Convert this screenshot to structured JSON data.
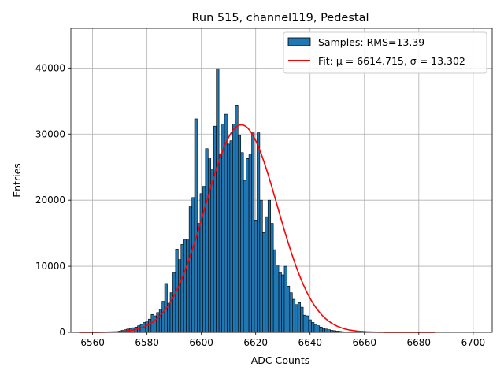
{
  "chart_data": {
    "type": "bar",
    "title": "Run 515, channel119, Pedestal",
    "xlabel": "ADC Counts",
    "ylabel": "Entries",
    "xlim": [
      6552,
      6707
    ],
    "ylim": [
      0,
      46000
    ],
    "xticks": [
      6560,
      6580,
      6600,
      6620,
      6640,
      6660,
      6680,
      6700
    ],
    "yticks": [
      0,
      10000,
      20000,
      30000,
      40000
    ],
    "grid": true,
    "legend_position": "top-right",
    "bar_color": "#1f77b4",
    "fit_color": "#ff0000",
    "series": [
      {
        "name": "Samples: RMS=13.39",
        "bin_width": 1,
        "x": [
          6570,
          6571,
          6572,
          6573,
          6574,
          6575,
          6576,
          6577,
          6578,
          6579,
          6580,
          6581,
          6582,
          6583,
          6584,
          6585,
          6586,
          6587,
          6588,
          6589,
          6590,
          6591,
          6592,
          6593,
          6594,
          6595,
          6596,
          6597,
          6598,
          6599,
          6600,
          6601,
          6602,
          6603,
          6604,
          6605,
          6606,
          6607,
          6608,
          6609,
          6610,
          6611,
          6612,
          6613,
          6614,
          6615,
          6616,
          6617,
          6618,
          6619,
          6620,
          6621,
          6622,
          6623,
          6624,
          6625,
          6626,
          6627,
          6628,
          6629,
          6630,
          6631,
          6632,
          6633,
          6634,
          6635,
          6636,
          6637,
          6638,
          6639,
          6640,
          6641,
          6642,
          6643,
          6644,
          6645,
          6646,
          6647,
          6648,
          6649,
          6650,
          6651,
          6652,
          6653,
          6654,
          6655,
          6656,
          6657,
          6658,
          6659,
          6660
        ],
        "values": [
          200,
          300,
          400,
          500,
          600,
          700,
          800,
          1000,
          1200,
          1500,
          1700,
          2000,
          2700,
          2500,
          3000,
          3500,
          4700,
          7400,
          4400,
          6000,
          9000,
          12600,
          11000,
          13300,
          14000,
          14100,
          19000,
          20400,
          32300,
          16500,
          21000,
          22100,
          27800,
          26400,
          24700,
          31200,
          39900,
          27000,
          31500,
          33000,
          28500,
          29000,
          31500,
          34400,
          29800,
          27200,
          23000,
          26300,
          27000,
          30200,
          17000,
          30200,
          20000,
          15100,
          17500,
          20000,
          16500,
          12500,
          10200,
          9000,
          8700,
          10000,
          7000,
          6000,
          5000,
          4200,
          4500,
          3800,
          2600,
          2500,
          1900,
          1500,
          1200,
          1000,
          800,
          600,
          500,
          400,
          300,
          250,
          200,
          150,
          100,
          80,
          60,
          40,
          30,
          20,
          10,
          5,
          2
        ]
      },
      {
        "name": "Fit: μ = 6614.715, σ = 13.302",
        "type": "line",
        "mu": 6614.715,
        "sigma": 13.302,
        "amplitude": 31400,
        "x_range": [
          6555,
          6686
        ]
      }
    ]
  }
}
